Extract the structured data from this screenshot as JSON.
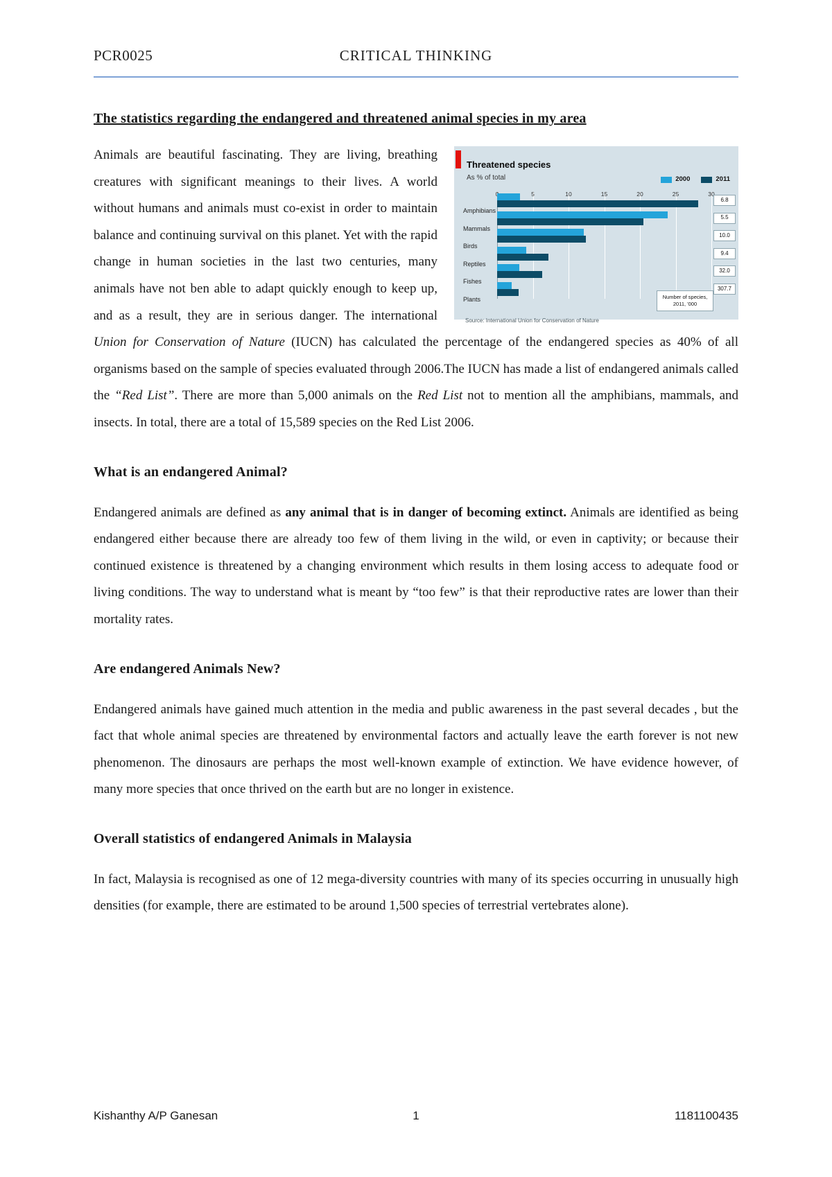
{
  "header": {
    "course_code": "PCR0025",
    "course_title": "CRITICAL THINKING"
  },
  "title": "The statistics regarding the endangered and threatened animal species in my area",
  "content": {
    "p1": [
      "Animals are beautiful fascinating. They are living, breathing creatures with significant meanings to their lives. A world without humans and animals must co-exist in order to maintain balance and continuing survival on this planet. Yet with the rapid change in human societies in the last two centuries, many animals have not ben able to adapt quickly enough to keep up, and as a result, they are in serious danger. The international ",
      "Union for Conservation of Nature",
      " (IUCN) has calculated the percentage of the endangered species as 40% of all organisms based on the sample of species evaluated through 2006.The IUCN has made a list of endangered animals called the ",
      "“Red List”",
      ". There are more than 5,000 animals on the ",
      "Red List",
      " not to mention all the amphibians, mammals, and insects. In total, there are a total of 15,589 species on the Red List 2006."
    ],
    "h2": "What is an endangered Animal?",
    "p2": [
      "Endangered animals are defined as ",
      "any animal that is in danger of becoming extinct.",
      " Animals are identified as being endangered either because there are already too few of them living in the wild, or even in captivity; or because their continued existence is threatened by a changing environment which results in them losing access to adequate food or living conditions. The way to understand what is meant by “too few”  is that their reproductive rates are lower than their mortality rates."
    ],
    "h3": "Are endangered Animals New?",
    "p3": "Endangered animals have gained much attention in the media and public awareness in the past several decades , but the fact that whole animal species are threatened by environmental factors and actually leave the earth forever is not new phenomenon. The dinosaurs are perhaps the most well-known example of extinction. We have evidence however, of many more species that once thrived on the earth but are no longer in existence.",
    "h4": "Overall statistics of endangered Animals in Malaysia",
    "p4": "In fact, Malaysia is recognised as one of 12 mega-diversity countries with many of its species occurring in unusually high densities (for example, there are estimated to be around 1,500 species of terrestrial vertebrates alone)."
  },
  "footer": {
    "author": "Kishanthy A/P Ganesan",
    "page_number": "1",
    "student_id": "1181100435"
  },
  "chart_data": {
    "type": "bar",
    "orientation": "horizontal",
    "title": "Threatened species",
    "subtitle": "As % of total",
    "categories": [
      "Amphibians",
      "Mammals",
      "Birds",
      "Reptiles",
      "Fishes",
      "Plants"
    ],
    "series": [
      {
        "name": "2000",
        "color": "#24a4da",
        "values": [
          3.2,
          23.9,
          12.1,
          4.1,
          3.1,
          2.0
        ]
      },
      {
        "name": "2011",
        "color": "#0c4c67",
        "values": [
          28.2,
          20.5,
          12.4,
          7.2,
          6.3,
          3.0
        ]
      }
    ],
    "x_ticks": [
      0,
      5,
      10,
      15,
      20,
      25,
      30
    ],
    "xlim": [
      0,
      31.5
    ],
    "grid": "vertical-white",
    "legend_position": "top-right",
    "value_boxes": {
      "label": "Number of species, 2011, '000",
      "values": [
        "6.8",
        "5.5",
        "10.0",
        "9.4",
        "32.0",
        "307.7"
      ]
    },
    "source": "Source: International Union for Conservation of Nature",
    "background": "#d5e1e8",
    "accent": "#e3120b"
  }
}
